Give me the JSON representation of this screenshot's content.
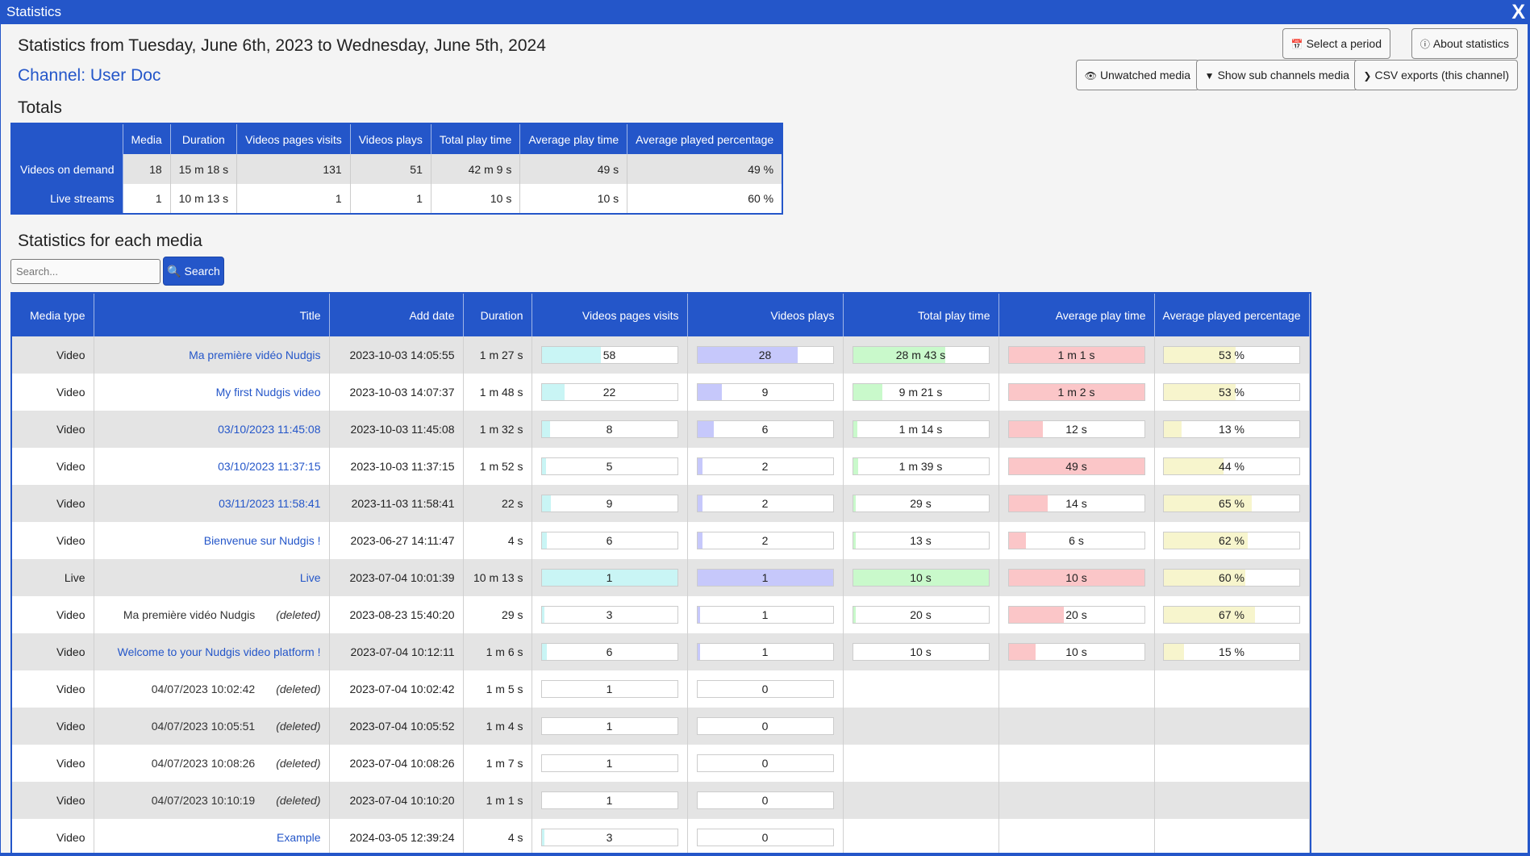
{
  "window": {
    "title": "Statistics",
    "close_label": "X"
  },
  "heading": "Statistics from Tuesday, June 6th, 2023 to Wednesday, June 5th, 2024",
  "channel": "Channel: User Doc",
  "buttons": {
    "select_period": "Select a period",
    "about": "About statistics",
    "unwatched": "Unwatched media",
    "subchannels": "Show sub channels media",
    "csv": "CSV exports (this channel)"
  },
  "icons": {
    "select_period": "calendar-icon",
    "about": "info-icon",
    "unwatched": "eye-slash-icon",
    "subchannels": "filter-icon",
    "csv": "chevron-right-icon",
    "search": "search-icon"
  },
  "colors": {
    "accent": "#2456c9",
    "visits": "#c9f5f5",
    "plays": "#c6c8fb",
    "total_time": "#c9f9cb",
    "avg_time": "#fbc6c8",
    "avg_pct": "#f7f5cd"
  },
  "totals": {
    "title": "Totals",
    "headers": [
      "",
      "Media",
      "Duration",
      "Videos pages visits",
      "Videos plays",
      "Total play time",
      "Average play time",
      "Average played percentage"
    ],
    "rows": [
      {
        "label": "Videos on demand",
        "cells": [
          "18",
          "15 m 18 s",
          "131",
          "51",
          "42 m 9 s",
          "49 s",
          "49 %"
        ]
      },
      {
        "label": "Live streams",
        "cells": [
          "1",
          "10 m 13 s",
          "1",
          "1",
          "10 s",
          "10 s",
          "60 %"
        ]
      }
    ]
  },
  "media_section": {
    "title": "Statistics for each media",
    "search_placeholder": "Search...",
    "search_button": "Search",
    "headers": [
      "Media type",
      "Title",
      "Add date",
      "Duration",
      "Videos pages visits",
      "Videos plays",
      "Total play time",
      "Average play time",
      "Average played percentage"
    ],
    "rows": [
      {
        "type": "Video",
        "title": "Ma première vidéo Nudgis",
        "deleted": "",
        "link": true,
        "date": "2023-10-03 14:05:55",
        "duration": "1 m 27 s",
        "visits": "58",
        "visits_frac": 0.44,
        "plays": "28",
        "plays_frac": 0.74,
        "total": "28 m 43 s",
        "total_frac": 0.68,
        "avg": "1 m 1 s",
        "avg_frac": 1.0,
        "pct": "53 %",
        "pct_frac": 0.53
      },
      {
        "type": "Video",
        "title": "My first Nudgis video",
        "deleted": "",
        "link": true,
        "date": "2023-10-03 14:07:37",
        "duration": "1 m 48 s",
        "visits": "22",
        "visits_frac": 0.17,
        "plays": "9",
        "plays_frac": 0.18,
        "total": "9 m 21 s",
        "total_frac": 0.22,
        "avg": "1 m 2 s",
        "avg_frac": 1.0,
        "pct": "53 %",
        "pct_frac": 0.53
      },
      {
        "type": "Video",
        "title": "03/10/2023 11:45:08",
        "deleted": "",
        "link": true,
        "date": "2023-10-03 11:45:08",
        "duration": "1 m 32 s",
        "visits": "8",
        "visits_frac": 0.06,
        "plays": "6",
        "plays_frac": 0.12,
        "total": "1 m 14 s",
        "total_frac": 0.03,
        "avg": "12 s",
        "avg_frac": 0.25,
        "pct": "13 %",
        "pct_frac": 0.13
      },
      {
        "type": "Video",
        "title": "03/10/2023 11:37:15",
        "deleted": "",
        "link": true,
        "date": "2023-10-03 11:37:15",
        "duration": "1 m 52 s",
        "visits": "5",
        "visits_frac": 0.03,
        "plays": "2",
        "plays_frac": 0.04,
        "total": "1 m 39 s",
        "total_frac": 0.04,
        "avg": "49 s",
        "avg_frac": 1.0,
        "pct": "44 %",
        "pct_frac": 0.44
      },
      {
        "type": "Video",
        "title": "03/11/2023 11:58:41",
        "deleted": "",
        "link": true,
        "date": "2023-11-03 11:58:41",
        "duration": "22 s",
        "visits": "9",
        "visits_frac": 0.07,
        "plays": "2",
        "plays_frac": 0.04,
        "total": "29 s",
        "total_frac": 0.01,
        "avg": "14 s",
        "avg_frac": 0.29,
        "pct": "65 %",
        "pct_frac": 0.65
      },
      {
        "type": "Video",
        "title": "Bienvenue sur Nudgis !",
        "deleted": "",
        "link": true,
        "date": "2023-06-27 14:11:47",
        "duration": "4 s",
        "visits": "6",
        "visits_frac": 0.04,
        "plays": "2",
        "plays_frac": 0.04,
        "total": "13 s",
        "total_frac": 0.01,
        "avg": "6 s",
        "avg_frac": 0.13,
        "pct": "62 %",
        "pct_frac": 0.62
      },
      {
        "type": "Live",
        "title": "Live",
        "deleted": "",
        "link": true,
        "date": "2023-07-04 10:01:39",
        "duration": "10 m 13 s",
        "visits": "1",
        "visits_frac": 1.0,
        "plays": "1",
        "plays_frac": 1.0,
        "total": "10 s",
        "total_frac": 1.0,
        "avg": "10 s",
        "avg_frac": 1.0,
        "pct": "60 %",
        "pct_frac": 0.6
      },
      {
        "type": "Video",
        "title": "Ma première vidéo Nudgis",
        "deleted": "(deleted)",
        "link": false,
        "date": "2023-08-23 15:40:20",
        "duration": "29 s",
        "visits": "3",
        "visits_frac": 0.02,
        "plays": "1",
        "plays_frac": 0.02,
        "total": "20 s",
        "total_frac": 0.01,
        "avg": "20 s",
        "avg_frac": 0.41,
        "pct": "67 %",
        "pct_frac": 0.67
      },
      {
        "type": "Video",
        "title": "Welcome to your Nudgis video platform !",
        "deleted": "",
        "link": true,
        "date": "2023-07-04 10:12:11",
        "duration": "1 m 6 s",
        "visits": "6",
        "visits_frac": 0.04,
        "plays": "1",
        "plays_frac": 0.02,
        "total": "10 s",
        "total_frac": 0.0,
        "avg": "10 s",
        "avg_frac": 0.2,
        "pct": "15 %",
        "pct_frac": 0.15
      },
      {
        "type": "Video",
        "title": "04/07/2023 10:02:42",
        "deleted": "(deleted)",
        "link": false,
        "date": "2023-07-04 10:02:42",
        "duration": "1 m 5 s",
        "visits": "1",
        "visits_frac": 0.0,
        "plays": "0",
        "plays_frac": 0.0
      },
      {
        "type": "Video",
        "title": "04/07/2023 10:05:51",
        "deleted": "(deleted)",
        "link": false,
        "date": "2023-07-04 10:05:52",
        "duration": "1 m 4 s",
        "visits": "1",
        "visits_frac": 0.0,
        "plays": "0",
        "plays_frac": 0.0
      },
      {
        "type": "Video",
        "title": "04/07/2023 10:08:26",
        "deleted": "(deleted)",
        "link": false,
        "date": "2023-07-04 10:08:26",
        "duration": "1 m 7 s",
        "visits": "1",
        "visits_frac": 0.0,
        "plays": "0",
        "plays_frac": 0.0
      },
      {
        "type": "Video",
        "title": "04/07/2023 10:10:19",
        "deleted": "(deleted)",
        "link": false,
        "date": "2023-07-04 10:10:20",
        "duration": "1 m 1 s",
        "visits": "1",
        "visits_frac": 0.0,
        "plays": "0",
        "plays_frac": 0.0
      },
      {
        "type": "Video",
        "title": "Example",
        "deleted": "",
        "link": true,
        "date": "2024-03-05 12:39:24",
        "duration": "4 s",
        "visits": "3",
        "visits_frac": 0.02,
        "plays": "0",
        "plays_frac": 0.0
      }
    ]
  }
}
